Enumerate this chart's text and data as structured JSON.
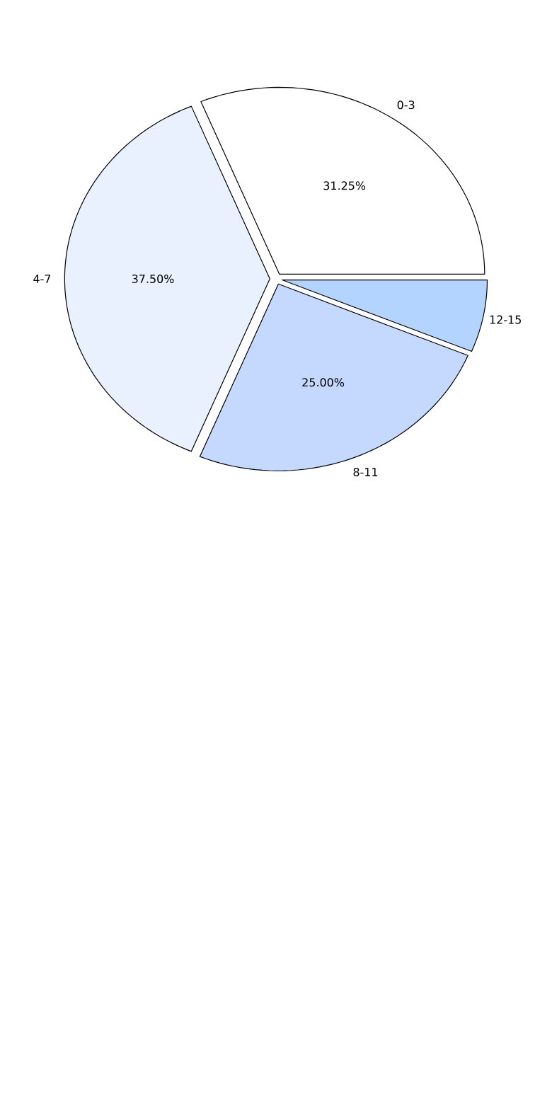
{
  "chart_data": {
    "type": "pie",
    "categories": [
      "0-3",
      "4-7",
      "8-11",
      "12-15"
    ],
    "values": [
      31.25,
      37.5,
      25,
      6.25
    ],
    "colors": [
      "#ffffff",
      "#eaf1fe",
      "#c5d8fe",
      "#b3d4fe"
    ],
    "value_labels": [
      "31.25%",
      "37.50%",
      "25.00%",
      null
    ]
  }
}
